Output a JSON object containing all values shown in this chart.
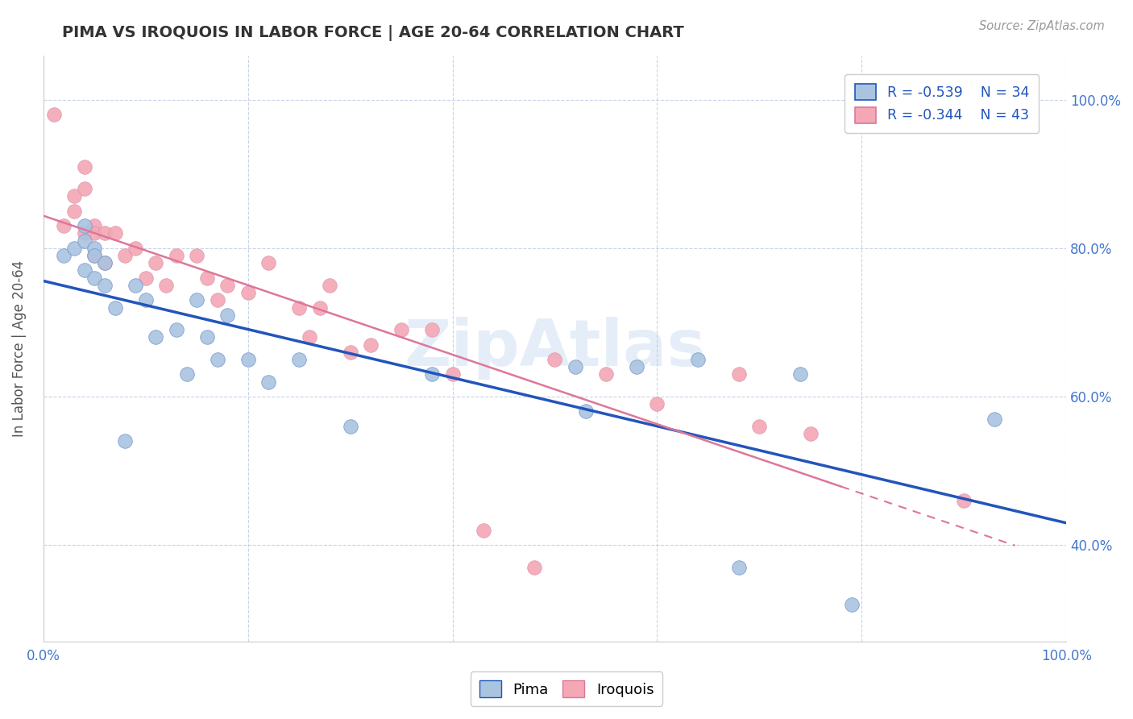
{
  "title": "PIMA VS IROQUOIS IN LABOR FORCE | AGE 20-64 CORRELATION CHART",
  "source": "Source: ZipAtlas.com",
  "ylabel": "In Labor Force | Age 20-64",
  "xlim": [
    0.0,
    1.0
  ],
  "ylim": [
    0.27,
    1.06
  ],
  "x_ticks": [
    0.0,
    0.2,
    0.4,
    0.6,
    0.8,
    1.0
  ],
  "y_ticks": [
    0.4,
    0.6,
    0.8,
    1.0
  ],
  "pima_R": -0.539,
  "pima_N": 34,
  "iroquois_R": -0.344,
  "iroquois_N": 43,
  "pima_color": "#aac4e0",
  "iroquois_color": "#f4a7b5",
  "pima_line_color": "#2255bb",
  "iroquois_line_color": "#dd7799",
  "grid_color": "#c8d4e8",
  "background_color": "#ffffff",
  "title_color": "#333333",
  "source_color": "#999999",
  "tick_color": "#4477cc",
  "label_color": "#555555",
  "legend_text_color": "#2255bb",
  "pima_x": [
    0.02,
    0.03,
    0.04,
    0.04,
    0.04,
    0.05,
    0.05,
    0.05,
    0.06,
    0.06,
    0.07,
    0.08,
    0.09,
    0.1,
    0.11,
    0.13,
    0.14,
    0.15,
    0.16,
    0.17,
    0.18,
    0.2,
    0.22,
    0.25,
    0.3,
    0.38,
    0.52,
    0.53,
    0.58,
    0.64,
    0.68,
    0.74,
    0.79,
    0.93
  ],
  "pima_y": [
    0.79,
    0.8,
    0.81,
    0.83,
    0.77,
    0.8,
    0.79,
    0.76,
    0.78,
    0.75,
    0.72,
    0.54,
    0.75,
    0.73,
    0.68,
    0.69,
    0.63,
    0.73,
    0.68,
    0.65,
    0.71,
    0.65,
    0.62,
    0.65,
    0.56,
    0.63,
    0.64,
    0.58,
    0.64,
    0.65,
    0.37,
    0.63,
    0.32,
    0.57
  ],
  "iroquois_x": [
    0.01,
    0.02,
    0.03,
    0.03,
    0.04,
    0.04,
    0.05,
    0.05,
    0.05,
    0.06,
    0.06,
    0.07,
    0.08,
    0.09,
    0.1,
    0.11,
    0.12,
    0.13,
    0.15,
    0.16,
    0.17,
    0.18,
    0.2,
    0.22,
    0.25,
    0.26,
    0.27,
    0.28,
    0.3,
    0.32,
    0.35,
    0.38,
    0.4,
    0.43,
    0.48,
    0.5,
    0.55,
    0.6,
    0.68,
    0.7,
    0.75,
    0.9,
    0.04
  ],
  "iroquois_y": [
    0.98,
    0.83,
    0.85,
    0.87,
    0.82,
    0.88,
    0.83,
    0.79,
    0.82,
    0.82,
    0.78,
    0.82,
    0.79,
    0.8,
    0.76,
    0.78,
    0.75,
    0.79,
    0.79,
    0.76,
    0.73,
    0.75,
    0.74,
    0.78,
    0.72,
    0.68,
    0.72,
    0.75,
    0.66,
    0.67,
    0.69,
    0.69,
    0.63,
    0.42,
    0.37,
    0.65,
    0.63,
    0.59,
    0.63,
    0.56,
    0.55,
    0.46,
    0.91
  ],
  "watermark_text": "ZipAtlas",
  "watermark_color": "#aac8e8",
  "watermark_alpha": 0.3,
  "pima_line_xmax": 1.0,
  "iroquois_line_xmax": 0.78,
  "iroquois_line_dash_xmax": 0.95
}
